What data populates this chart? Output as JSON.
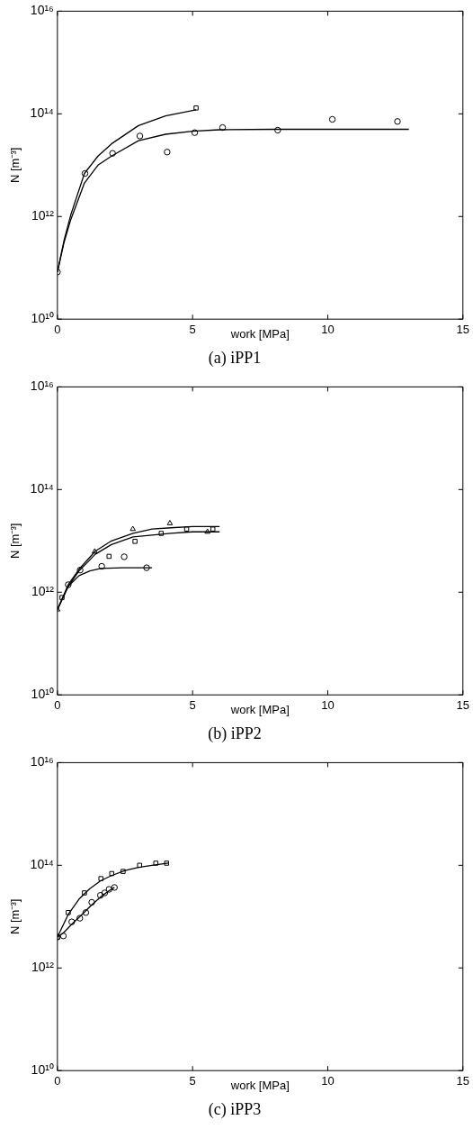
{
  "chart_data": [
    {
      "type": "scatter",
      "title": "(a) iPP1",
      "xlabel": "work [MPa]",
      "ylabel": "N [m⁻³]",
      "log": "y",
      "xlim": [
        0,
        15
      ],
      "xticks": [
        0,
        5,
        10,
        15
      ],
      "ylim": [
        10000000000.0,
        1e+16
      ],
      "yticks": [
        {
          "value": 10000000000.0,
          "label": "10¹⁰"
        },
        {
          "value": 1000000000000.0,
          "label": "10¹²"
        },
        {
          "value": 100000000000000.0,
          "label": "10¹⁴"
        },
        {
          "value": 1e+16,
          "label": "10¹⁶"
        }
      ],
      "grid": false,
      "legend": false,
      "series": [
        {
          "type": "line",
          "marker": "none",
          "color": "#000000",
          "x": [
            0,
            0.25,
            0.5,
            1,
            1.5,
            2,
            3,
            4,
            5,
            6,
            8,
            13
          ],
          "values": [
            83000000000.0,
            320000000000.0,
            890000000000.0,
            4500000000000.0,
            10000000000000.0,
            15000000000000.0,
            30000000000000.0,
            40000000000000.0,
            46000000000000.0,
            49000000000000.0,
            50000000000000.0,
            50000000000000.0
          ]
        },
        {
          "type": "line",
          "marker": "none",
          "color": "#000000",
          "x": [
            0,
            0.25,
            0.5,
            1,
            1.5,
            2,
            3,
            4,
            5.13
          ],
          "values": [
            83000000000.0,
            350000000000.0,
            1100000000000.0,
            6900000000000.0,
            15000000000000.0,
            26000000000000.0,
            59000000000000.0,
            91000000000000.0,
            120000000000000.0
          ]
        },
        {
          "type": "scatter",
          "marker": "circle",
          "color": "#000000",
          "x": [
            0,
            1.02,
            2.04,
            3.05,
            4.06,
            5.08,
            6.11,
            8.15,
            10.17,
            12.58
          ],
          "values": [
            83000000000.0,
            6900000000000.0,
            17000000000000.0,
            37000000000000.0,
            18000000000000.0,
            43000000000000.0,
            54000000000000.0,
            48000000000000.0,
            78000000000000.0,
            71000000000000.0
          ]
        },
        {
          "type": "scatter",
          "marker": "square",
          "color": "#000000",
          "x": [
            5.13
          ],
          "values": [
            130000000000000.0
          ]
        }
      ]
    },
    {
      "type": "scatter",
      "title": "(b) iPP2",
      "xlabel": "work [MPa]",
      "ylabel": "N [m⁻³]",
      "log": "y",
      "xlim": [
        0,
        15
      ],
      "xticks": [
        0,
        5,
        10,
        15
      ],
      "ylim": [
        10000000000.0,
        1e+16
      ],
      "yticks": [
        {
          "value": 10000000000.0,
          "label": "10¹⁰"
        },
        {
          "value": 1000000000000.0,
          "label": "10¹²"
        },
        {
          "value": 100000000000000.0,
          "label": "10¹⁴"
        },
        {
          "value": 1e+16,
          "label": "10¹⁶"
        }
      ],
      "grid": false,
      "legend": false,
      "series": [
        {
          "type": "line",
          "marker": "none",
          "color": "#000000",
          "x": [
            0,
            0.4,
            0.8,
            1.4,
            2,
            2.8,
            3.5,
            4.2,
            5,
            6
          ],
          "values": [
            460000000000.0,
            1400000000000.0,
            2800000000000.0,
            6300000000000.0,
            10000000000000.0,
            14000000000000.0,
            17000000000000.0,
            18000000000000.0,
            19000000000000.0,
            19000000000000.0
          ]
        },
        {
          "type": "line",
          "marker": "none",
          "color": "#000000",
          "x": [
            0,
            0.4,
            0.8,
            1.4,
            2,
            2.8,
            3.5,
            4.2,
            5,
            6
          ],
          "values": [
            460000000000.0,
            1300000000000.0,
            2600000000000.0,
            5500000000000.0,
            8500000000000.0,
            12000000000000.0,
            13000000000000.0,
            14000000000000.0,
            15000000000000.0,
            15000000000000.0
          ]
        },
        {
          "type": "line",
          "marker": "none",
          "color": "#000000",
          "x": [
            0,
            0.4,
            0.8,
            1.2,
            1.6,
            2.4,
            3.5
          ],
          "values": [
            460000000000.0,
            1300000000000.0,
            2100000000000.0,
            2600000000000.0,
            2900000000000.0,
            3000000000000.0,
            3000000000000.0
          ]
        },
        {
          "type": "scatter",
          "marker": "triangle",
          "color": "#000000",
          "x": [
            0,
            1.38,
            2.79,
            4.16,
            5.55
          ],
          "values": [
            460000000000.0,
            6200000000000.0,
            17000000000000.0,
            22000000000000.0,
            15000000000000.0
          ]
        },
        {
          "type": "scatter",
          "marker": "square",
          "color": "#000000",
          "x": [
            0.17,
            1.91,
            2.87,
            3.84,
            4.78,
            5.75
          ],
          "values": [
            790000000000.0,
            5000000000000.0,
            9800000000000.0,
            14000000000000.0,
            17000000000000.0,
            17000000000000.0
          ]
        },
        {
          "type": "scatter",
          "marker": "circle",
          "color": "#000000",
          "x": [
            0.4,
            0.84,
            1.64,
            2.47,
            3.3
          ],
          "values": [
            1400000000000.0,
            2700000000000.0,
            3200000000000.0,
            4900000000000.0,
            3000000000000.0
          ]
        }
      ]
    },
    {
      "type": "scatter",
      "title": "(c) iPP3",
      "xlabel": "work [MPa]",
      "ylabel": "N [m⁻³]",
      "log": "y",
      "xlim": [
        0,
        15
      ],
      "xticks": [
        0,
        5,
        10,
        15
      ],
      "ylim": [
        10000000000.0,
        1e+16
      ],
      "yticks": [
        {
          "value": 10000000000.0,
          "label": "10¹⁰"
        },
        {
          "value": 1000000000000.0,
          "label": "10¹²"
        },
        {
          "value": 100000000000000.0,
          "label": "10¹⁴"
        },
        {
          "value": 1e+16,
          "label": "10¹⁶"
        }
      ],
      "grid": false,
      "legend": false,
      "series": [
        {
          "type": "line",
          "marker": "none",
          "color": "#000000",
          "x": [
            0,
            0.4,
            0.8,
            1.2,
            1.6,
            2,
            2.5,
            3,
            3.5,
            4.1
          ],
          "values": [
            4000000000000.0,
            11000000000000.0,
            22000000000000.0,
            35000000000000.0,
            50000000000000.0,
            63000000000000.0,
            79000000000000.0,
            91000000000000.0,
            100000000000000.0,
            110000000000000.0
          ]
        },
        {
          "type": "line",
          "marker": "none",
          "color": "#000000",
          "x": [
            0,
            0.22,
            0.53,
            0.83,
            1.05,
            1.27,
            1.59,
            1.91,
            2.11
          ],
          "values": [
            4000000000000.0,
            4800000000000.0,
            7100000000000.0,
            10000000000000.0,
            13000000000000.0,
            17000000000000.0,
            24000000000000.0,
            32000000000000.0,
            37000000000000.0
          ]
        },
        {
          "type": "scatter",
          "marker": "square",
          "color": "#000000",
          "x": [
            0,
            0.4,
            1,
            1.61,
            2.01,
            2.43,
            3.04,
            3.64,
            4.04
          ],
          "values": [
            4000000000000.0,
            12000000000000.0,
            29000000000000.0,
            55000000000000.0,
            69000000000000.0,
            76000000000000.0,
            100000000000000.0,
            110000000000000.0,
            110000000000000.0
          ]
        },
        {
          "type": "scatter",
          "marker": "circle",
          "color": "#000000",
          "x": [
            0,
            0.22,
            0.53,
            0.83,
            1.05,
            1.27,
            1.59,
            1.75,
            1.91,
            2.11
          ],
          "values": [
            4000000000000.0,
            4200000000000.0,
            7900000000000.0,
            9300000000000.0,
            12000000000000.0,
            19000000000000.0,
            26000000000000.0,
            29000000000000.0,
            34000000000000.0,
            37000000000000.0
          ]
        }
      ]
    }
  ]
}
